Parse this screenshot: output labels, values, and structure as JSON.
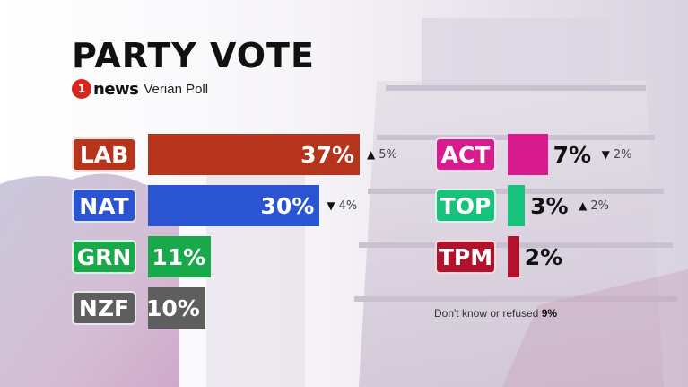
{
  "title": "PARTY VOTE",
  "logo": {
    "mark": "1",
    "word": "news"
  },
  "poll_name": "Verian Poll",
  "note": {
    "text": "Don't know or refused",
    "value": "9%"
  },
  "colors": {
    "LAB": "#b5341b",
    "NAT": "#2a54d2",
    "GRN": "#18a94a",
    "NZF": "#5e5e5e",
    "ACT": "#d81b8d",
    "TOP": "#17c27b",
    "TPM": "#b2122c"
  },
  "chart_data": {
    "type": "bar",
    "orientation": "horizontal",
    "title": "PARTY VOTE",
    "categories": [
      "LAB",
      "NAT",
      "GRN",
      "NZF",
      "ACT",
      "TOP",
      "TPM"
    ],
    "values": [
      37,
      30,
      11,
      10,
      7,
      3,
      2
    ],
    "value_labels": [
      "37%",
      "30%",
      "11%",
      "10%",
      "7%",
      "3%",
      "2%"
    ],
    "changes": [
      {
        "party": "LAB",
        "direction": "up",
        "label": "5%"
      },
      {
        "party": "NAT",
        "direction": "down",
        "label": "4%"
      },
      {
        "party": "GRN",
        "direction": "",
        "label": ""
      },
      {
        "party": "NZF",
        "direction": "",
        "label": ""
      },
      {
        "party": "ACT",
        "direction": "down",
        "label": "2%"
      },
      {
        "party": "TOP",
        "direction": "up",
        "label": "2%"
      },
      {
        "party": "TPM",
        "direction": "",
        "label": ""
      }
    ],
    "groups": [
      [
        "LAB",
        "NAT",
        "GRN",
        "NZF"
      ],
      [
        "ACT",
        "TOP",
        "TPM"
      ]
    ],
    "xlim": [
      0,
      37
    ],
    "grid": false,
    "legend": "none"
  }
}
